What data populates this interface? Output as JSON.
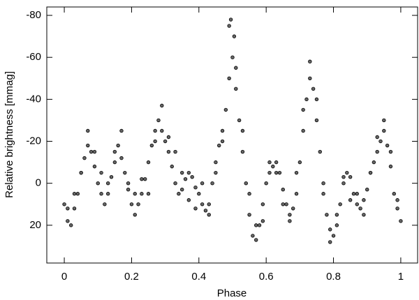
{
  "chart_data": {
    "type": "scatter",
    "x_label": "Phase",
    "y_label": "Relative brightness [mmag]",
    "xlim": [
      -0.052,
      1.05
    ],
    "xticks": [
      0,
      0.2,
      0.4,
      0.6,
      0.8,
      1
    ],
    "ylim": [
      38,
      -84
    ],
    "yticks": [
      -80,
      -60,
      -40,
      -20,
      0,
      20
    ],
    "color": "#000000",
    "x": [
      0,
      0.01,
      0.02,
      0.03,
      0.04,
      0.05,
      0.06,
      0.07,
      0.08,
      0.09,
      0.1,
      0.11,
      0.12,
      0.13,
      0.14,
      0.15,
      0.16,
      0.17,
      0.18,
      0.19,
      0.2,
      0.21,
      0.22,
      0.23,
      0.24,
      0.25,
      0.26,
      0.27,
      0.28,
      0.29,
      0.3,
      0.31,
      0.32,
      0.33,
      0.34,
      0.35,
      0.36,
      0.37,
      0.38,
      0.39,
      0.4,
      0.41,
      0.42,
      0.43,
      0.44,
      0.45,
      0.46,
      0.47,
      0.48,
      0.49,
      0.5,
      0.51,
      0.52,
      0.53,
      0.54,
      0.55,
      0.56,
      0.57,
      0.58,
      0.59,
      0.6,
      0.61,
      0.62,
      0.63,
      0.64,
      0.65,
      0.66,
      0.67,
      0.68,
      0.69,
      0.7,
      0.71,
      0.72,
      0.73,
      0.74,
      0.75,
      0.76,
      0.77,
      0.78,
      0.79,
      0.8,
      0.81,
      0.82,
      0.83,
      0.84,
      0.85,
      0.86,
      0.87,
      0.88,
      0.89,
      0.9,
      0.91,
      0.92,
      0.93,
      0.94,
      0.95,
      0.96,
      0.97,
      0.98,
      0.99,
      1,
      0.01,
      0.03,
      0.05,
      0.07,
      0.09,
      0.11,
      0.13,
      0.15,
      0.17,
      0.19,
      0.21,
      0.23,
      0.25,
      0.27,
      0.29,
      0.31,
      0.33,
      0.35,
      0.37,
      0.39,
      0.41,
      0.43,
      0.45,
      0.47,
      0.49,
      0.51,
      0.53,
      0.55,
      0.57,
      0.59,
      0.61,
      0.63,
      0.65,
      0.67,
      0.69,
      0.71,
      0.73,
      0.75,
      0.77,
      0.79,
      0.81,
      0.83,
      0.85,
      0.87,
      0.89,
      0.91,
      0.93,
      0.95,
      0.97,
      0.99,
      0.495,
      0.505
    ],
    "values": [
      10,
      18,
      20,
      12,
      5,
      -5,
      -12,
      -18,
      -15,
      -8,
      0,
      5,
      10,
      5,
      -3,
      -10,
      -18,
      -12,
      -5,
      3,
      10,
      15,
      10,
      5,
      -2,
      -10,
      -18,
      -25,
      -30,
      -25,
      -20,
      -15,
      -8,
      0,
      5,
      3,
      -2,
      -5,
      -3,
      2,
      5,
      10,
      13,
      10,
      0,
      -10,
      -18,
      -25,
      -35,
      -50,
      -60,
      -45,
      -30,
      -15,
      0,
      15,
      25,
      27,
      20,
      10,
      0,
      -5,
      -8,
      -10,
      -5,
      3,
      10,
      15,
      12,
      5,
      -10,
      -25,
      -40,
      -50,
      -45,
      -30,
      -15,
      0,
      15,
      22,
      25,
      20,
      10,
      0,
      -5,
      -3,
      5,
      10,
      12,
      8,
      3,
      -5,
      -10,
      -15,
      -20,
      -25,
      -18,
      -8,
      5,
      12,
      18,
      12,
      5,
      -5,
      -25,
      -15,
      -5,
      0,
      -15,
      -25,
      0,
      5,
      -2,
      5,
      -20,
      -37,
      -22,
      -15,
      -5,
      8,
      12,
      0,
      15,
      -5,
      -20,
      -75,
      -55,
      -25,
      5,
      20,
      18,
      -10,
      -5,
      10,
      18,
      -5,
      -35,
      -58,
      -40,
      5,
      28,
      15,
      -3,
      8,
      5,
      15,
      -5,
      -22,
      -30,
      -15,
      8,
      -78,
      -70
    ]
  }
}
